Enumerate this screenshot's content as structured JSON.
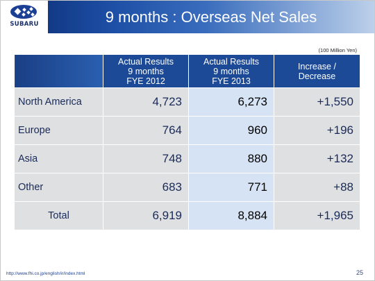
{
  "logo": {
    "text": "SUBARU"
  },
  "title": "9 months : Overseas Net Sales",
  "unit": "(100 Million Yen)",
  "table": {
    "headers": [
      [
        "Actual Results",
        "9 months",
        "FYE 2012"
      ],
      [
        "Actual Results",
        "9 months",
        "FYE 2013"
      ],
      [
        "Increase /",
        "Decrease"
      ]
    ],
    "rows": [
      {
        "label": "North America",
        "fye2012": "4,723",
        "fye2013": "6,273",
        "change": "+1,550"
      },
      {
        "label": "Europe",
        "fye2012": "764",
        "fye2013": "960",
        "change": "+196"
      },
      {
        "label": "Asia",
        "fye2012": "748",
        "fye2013": "880",
        "change": "+132"
      },
      {
        "label": "Other",
        "fye2012": "683",
        "fye2013": "771",
        "change": "+88"
      },
      {
        "label": "Total",
        "fye2012": "6,919",
        "fye2013": "8,884",
        "change": "+1,965"
      }
    ]
  },
  "footer": {
    "url": "http://www.fhi.co.jp/english/ir/index.html",
    "page": "25"
  },
  "colors": {
    "header_dark": "#0a2a6e",
    "table_header": "#1c4a96",
    "cell_gray": "#dfe0e2",
    "cell_blue": "#d6e3f5"
  }
}
